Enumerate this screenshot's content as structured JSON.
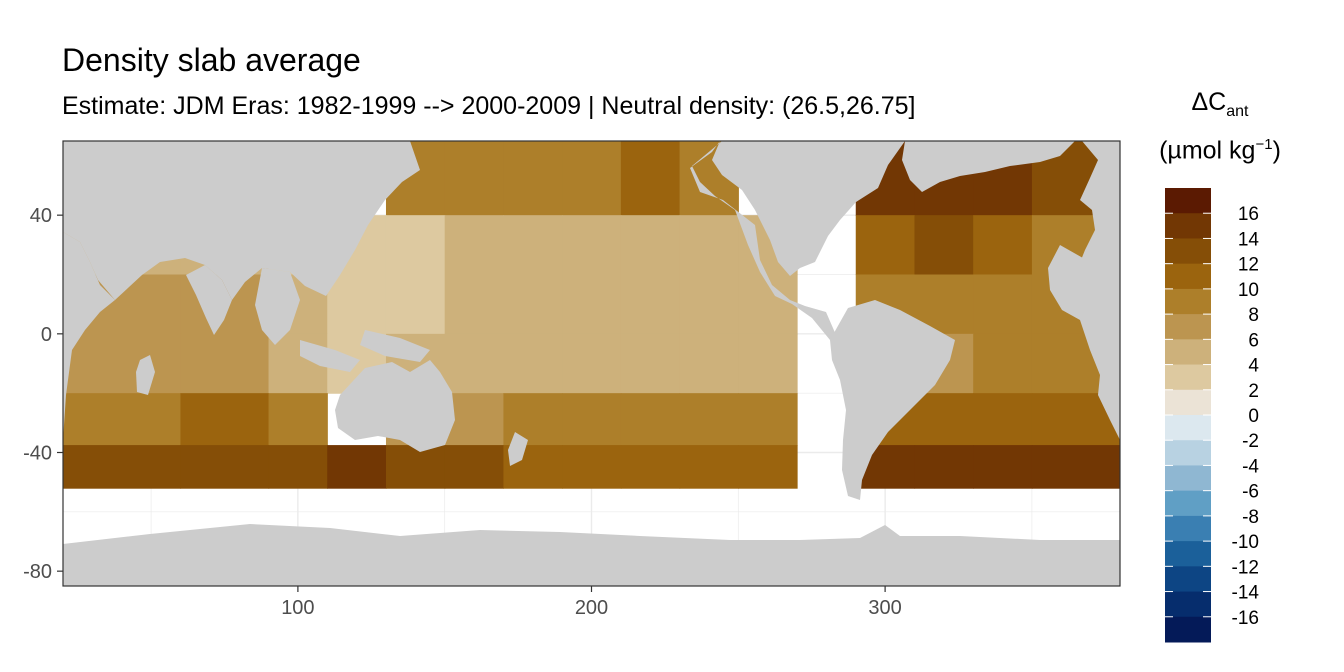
{
  "chart_data": {
    "type": "heatmap",
    "title": "Density slab average",
    "subtitle": "Estimate: JDM Eras: 1982-1999 --> 2000-2009 | Neutral density: (26.5,26.75]",
    "xlabel": "",
    "ylabel": "",
    "xlim": [
      20,
      380
    ],
    "ylim": [
      -85,
      65
    ],
    "x_ticks": [
      100,
      200,
      300
    ],
    "y_ticks": [
      40,
      0,
      -40,
      -80
    ],
    "grid": true,
    "legend": {
      "position": "right",
      "title_main": "ΔC",
      "title_sub": "ant",
      "unit_prefix": "(µmol kg",
      "unit_sup": "−1",
      "unit_suffix": ")",
      "labels": [
        "16",
        "14",
        "12",
        "10",
        "8",
        "6",
        "4",
        "2",
        "0",
        "-2",
        "-4",
        "-6",
        "-8",
        "-10",
        "-12",
        "-14",
        "-16"
      ],
      "colors": [
        "#5b1a02",
        "#723704",
        "#854e07",
        "#9b640e",
        "#ad7f2a",
        "#bc9550",
        "#cdb17b",
        "#ddc9a0",
        "#ebe3d6",
        "#dce8ef",
        "#b8d2e2",
        "#8fb7d2",
        "#609fc5",
        "#3a7fb2",
        "#1b609a",
        "#0d4584",
        "#062d6d",
        "#041a58"
      ]
    },
    "x": [
      40,
      80,
      100,
      120,
      140,
      160,
      180,
      200,
      220,
      240,
      260,
      280,
      300,
      320,
      340,
      360
    ],
    "latitudes": [
      50,
      30,
      10,
      -10,
      -30,
      -45
    ],
    "values": [
      [
        null,
        null,
        null,
        null,
        10,
        10,
        9,
        10,
        11,
        10,
        null,
        null,
        15,
        16,
        15,
        13
      ],
      [
        5,
        6,
        4,
        3,
        4,
        5,
        5,
        6,
        6,
        5,
        5,
        null,
        12,
        13,
        12,
        10
      ],
      [
        7,
        8,
        5,
        3,
        4,
        5,
        5,
        6,
        6,
        5,
        5,
        null,
        10,
        9,
        10,
        9
      ],
      [
        8,
        8,
        6,
        4,
        5,
        6,
        6,
        6,
        6,
        6,
        6,
        null,
        9,
        8,
        9,
        9
      ],
      [
        10,
        11,
        10,
        null,
        8,
        8,
        9,
        9,
        9,
        9,
        9,
        null,
        11,
        12,
        12,
        12
      ],
      [
        13,
        14,
        14,
        15,
        13,
        13,
        12,
        12,
        12,
        12,
        12,
        null,
        15,
        15,
        15,
        15
      ]
    ]
  }
}
